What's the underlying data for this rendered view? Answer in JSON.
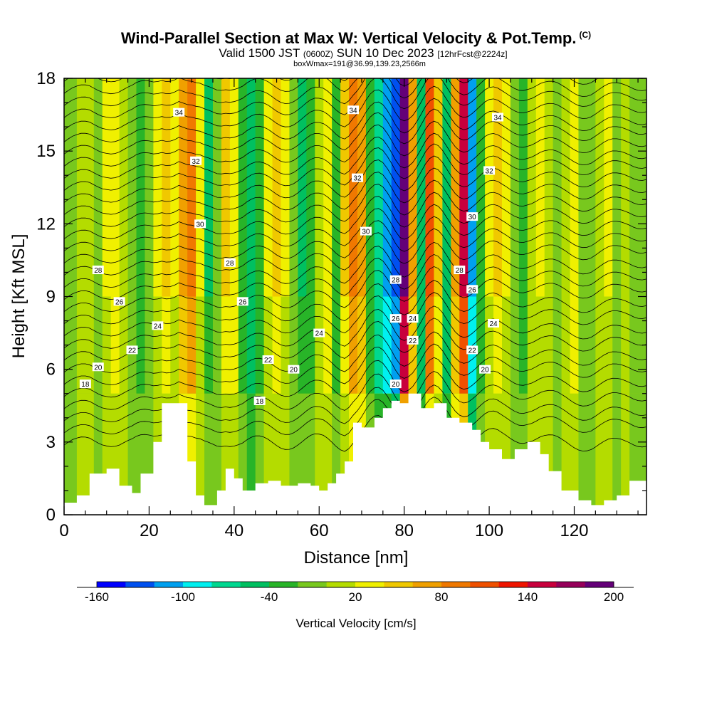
{
  "header": {
    "title": "Wind-Parallel Section at Max W: Vertical Velocity & Pot.Temp.",
    "copyright": "(C)",
    "valid_prefix": "Valid 1500 JST",
    "valid_utc": "(0600Z)",
    "valid_date": "SUN 10 Dec 2023",
    "forecast": "[12hrFcst@2224z]",
    "box_info": "boxWmax=191@36.99,139.23,2566m"
  },
  "chart_data": {
    "type": "heatmap",
    "xlabel": "Distance [nm]",
    "ylabel": "Height [Kft MSL]",
    "xlim": [
      0,
      137
    ],
    "ylim": [
      0,
      18
    ],
    "x_ticks": [
      0,
      20,
      40,
      60,
      80,
      100,
      120
    ],
    "y_ticks": [
      0,
      3,
      6,
      9,
      12,
      15,
      18
    ],
    "colorbar": {
      "label": "Vertical Velocity [cm/s]",
      "min": -160,
      "max": 200,
      "step": 20,
      "tick_labels": [
        "-160",
        "-100",
        "-40",
        "20",
        "80",
        "140",
        "200"
      ],
      "tick_values": [
        -160,
        -100,
        -40,
        20,
        80,
        140,
        200
      ],
      "colors": [
        "#0000ff",
        "#0050f0",
        "#00a0f0",
        "#00f0f0",
        "#00d890",
        "#00c060",
        "#28b428",
        "#78c81e",
        "#b4dc00",
        "#f0f000",
        "#f0c800",
        "#f0a000",
        "#f07800",
        "#f05000",
        "#f01400",
        "#c8003c",
        "#96005a",
        "#640078"
      ]
    },
    "terrain": [
      [
        0,
        0.5
      ],
      [
        3,
        0.8
      ],
      [
        6,
        1.7
      ],
      [
        10,
        1.9
      ],
      [
        13,
        1.2
      ],
      [
        16,
        0.9
      ],
      [
        18,
        1.7
      ],
      [
        21,
        3.0
      ],
      [
        23,
        4.6
      ],
      [
        27,
        4.6
      ],
      [
        29,
        2.2
      ],
      [
        31,
        0.8
      ],
      [
        33,
        0.4
      ],
      [
        36,
        1.0
      ],
      [
        38,
        1.9
      ],
      [
        40,
        1.5
      ],
      [
        42,
        1.0
      ],
      [
        45,
        1.3
      ],
      [
        48,
        1.4
      ],
      [
        51,
        1.2
      ],
      [
        55,
        1.3
      ],
      [
        58,
        1.2
      ],
      [
        60,
        1.0
      ],
      [
        62,
        1.3
      ],
      [
        64,
        1.7
      ],
      [
        66,
        2.2
      ],
      [
        68,
        3.8
      ],
      [
        70,
        3.6
      ],
      [
        73,
        4.0
      ],
      [
        75,
        4.4
      ],
      [
        77,
        4.7
      ],
      [
        79,
        4.6
      ],
      [
        81,
        5.0
      ],
      [
        84,
        4.4
      ],
      [
        87,
        4.6
      ],
      [
        90,
        4.0
      ],
      [
        93,
        3.8
      ],
      [
        96,
        3.5
      ],
      [
        98,
        3.0
      ],
      [
        100,
        2.7
      ],
      [
        103,
        2.3
      ],
      [
        106,
        2.7
      ],
      [
        109,
        3.0
      ],
      [
        112,
        2.5
      ],
      [
        114,
        1.8
      ],
      [
        117,
        1.0
      ],
      [
        121,
        0.6
      ],
      [
        124,
        0.4
      ],
      [
        127,
        0.6
      ],
      [
        130,
        0.8
      ],
      [
        133,
        1.4
      ],
      [
        137,
        1.7
      ]
    ],
    "theta_labels": [
      {
        "x": 27,
        "y": 16.6,
        "text": "34"
      },
      {
        "x": 68,
        "y": 16.7,
        "text": "34"
      },
      {
        "x": 102,
        "y": 16.4,
        "text": "34"
      },
      {
        "x": 31,
        "y": 14.6,
        "text": "32"
      },
      {
        "x": 69,
        "y": 13.9,
        "text": "32"
      },
      {
        "x": 100,
        "y": 14.2,
        "text": "32"
      },
      {
        "x": 32,
        "y": 12.0,
        "text": "30"
      },
      {
        "x": 71,
        "y": 11.7,
        "text": "30"
      },
      {
        "x": 96,
        "y": 12.3,
        "text": "30"
      },
      {
        "x": 8,
        "y": 10.1,
        "text": "28"
      },
      {
        "x": 39,
        "y": 10.4,
        "text": "28"
      },
      {
        "x": 78,
        "y": 9.7,
        "text": "28"
      },
      {
        "x": 93,
        "y": 10.1,
        "text": "28"
      },
      {
        "x": 13,
        "y": 8.8,
        "text": "26"
      },
      {
        "x": 42,
        "y": 8.8,
        "text": "26"
      },
      {
        "x": 78,
        "y": 8.1,
        "text": "26"
      },
      {
        "x": 96,
        "y": 9.3,
        "text": "26"
      },
      {
        "x": 22,
        "y": 7.8,
        "text": "24"
      },
      {
        "x": 60,
        "y": 7.5,
        "text": "24"
      },
      {
        "x": 82,
        "y": 8.1,
        "text": "24"
      },
      {
        "x": 101,
        "y": 7.9,
        "text": "24"
      },
      {
        "x": 16,
        "y": 6.8,
        "text": "22"
      },
      {
        "x": 48,
        "y": 6.4,
        "text": "22"
      },
      {
        "x": 82,
        "y": 7.2,
        "text": "22"
      },
      {
        "x": 96,
        "y": 6.8,
        "text": "22"
      },
      {
        "x": 8,
        "y": 6.1,
        "text": "20"
      },
      {
        "x": 54,
        "y": 6.0,
        "text": "20"
      },
      {
        "x": 78,
        "y": 5.4,
        "text": "20"
      },
      {
        "x": 99,
        "y": 6.0,
        "text": "20"
      },
      {
        "x": 5,
        "y": 5.4,
        "text": "18"
      },
      {
        "x": 46,
        "y": 4.7,
        "text": "18"
      }
    ],
    "theta_lines": [
      {
        "base": 2.8,
        "rise": 0.0
      },
      {
        "base": 3.3,
        "rise": 0.3
      },
      {
        "base": 3.8,
        "rise": 0.3
      },
      {
        "base": 4.3,
        "rise": 0.4
      },
      {
        "base": 4.8,
        "rise": 0.5
      },
      {
        "base": 5.3,
        "rise": 0.6
      },
      {
        "base": 5.8,
        "rise": 0.6
      },
      {
        "base": 6.3,
        "rise": 0.7
      },
      {
        "base": 6.8,
        "rise": 0.7
      },
      {
        "base": 7.3,
        "rise": 0.8
      },
      {
        "base": 7.8,
        "rise": 0.8
      },
      {
        "base": 8.3,
        "rise": 0.9
      },
      {
        "base": 8.8,
        "rise": 0.9
      },
      {
        "base": 9.3,
        "rise": 0.9
      },
      {
        "base": 9.8,
        "rise": 1.0
      },
      {
        "base": 10.3,
        "rise": 1.0
      },
      {
        "base": 10.8,
        "rise": 1.0
      },
      {
        "base": 11.3,
        "rise": 1.0
      },
      {
        "base": 11.8,
        "rise": 1.0
      },
      {
        "base": 12.3,
        "rise": 1.0
      },
      {
        "base": 12.8,
        "rise": 1.0
      },
      {
        "base": 13.3,
        "rise": 1.0
      },
      {
        "base": 13.8,
        "rise": 0.9
      },
      {
        "base": 14.3,
        "rise": 0.9
      },
      {
        "base": 14.8,
        "rise": 0.9
      },
      {
        "base": 15.3,
        "rise": 0.8
      },
      {
        "base": 15.8,
        "rise": 0.8
      },
      {
        "base": 16.3,
        "rise": 0.8
      },
      {
        "base": 16.8,
        "rise": 0.7
      },
      {
        "base": 17.3,
        "rise": 0.7
      },
      {
        "base": 17.8,
        "rise": 0.6
      }
    ],
    "w_columns": [
      {
        "x": 0,
        "w": -10
      },
      {
        "x": 2,
        "w": -20
      },
      {
        "x": 4,
        "w": 0
      },
      {
        "x": 6,
        "w": 10
      },
      {
        "x": 8,
        "w": -10
      },
      {
        "x": 10,
        "w": 20
      },
      {
        "x": 12,
        "w": 30
      },
      {
        "x": 14,
        "w": 10
      },
      {
        "x": 16,
        "w": -20
      },
      {
        "x": 18,
        "w": -40
      },
      {
        "x": 20,
        "w": -20
      },
      {
        "x": 22,
        "w": 20
      },
      {
        "x": 24,
        "w": 40
      },
      {
        "x": 26,
        "w": 20
      },
      {
        "x": 28,
        "w": 60
      },
      {
        "x": 30,
        "w": 80
      },
      {
        "x": 32,
        "w": 20
      },
      {
        "x": 34,
        "w": -50
      },
      {
        "x": 36,
        "w": -20
      },
      {
        "x": 38,
        "w": 40
      },
      {
        "x": 40,
        "w": 30
      },
      {
        "x": 42,
        "w": -30
      },
      {
        "x": 44,
        "w": -60
      },
      {
        "x": 46,
        "w": -40
      },
      {
        "x": 48,
        "w": 20
      },
      {
        "x": 50,
        "w": 40
      },
      {
        "x": 52,
        "w": 20
      },
      {
        "x": 54,
        "w": -20
      },
      {
        "x": 56,
        "w": -50
      },
      {
        "x": 58,
        "w": -30
      },
      {
        "x": 60,
        "w": 10
      },
      {
        "x": 62,
        "w": 30
      },
      {
        "x": 64,
        "w": -40
      },
      {
        "x": 66,
        "w": 40
      },
      {
        "x": 68,
        "w": 80
      },
      {
        "x": 70,
        "w": 60
      },
      {
        "x": 72,
        "w": -40
      },
      {
        "x": 74,
        "w": -80
      },
      {
        "x": 76,
        "w": -110
      },
      {
        "x": 78,
        "w": -140
      },
      {
        "x": 80,
        "w": 180
      },
      {
        "x": 82,
        "w": 60
      },
      {
        "x": 84,
        "w": -60
      },
      {
        "x": 86,
        "w": 100
      },
      {
        "x": 88,
        "w": 40
      },
      {
        "x": 90,
        "w": -60
      },
      {
        "x": 92,
        "w": 60
      },
      {
        "x": 94,
        "w": 140
      },
      {
        "x": 96,
        "w": -120
      },
      {
        "x": 98,
        "w": -40
      },
      {
        "x": 100,
        "w": 20
      },
      {
        "x": 102,
        "w": 40
      },
      {
        "x": 104,
        "w": 20
      },
      {
        "x": 106,
        "w": -20
      },
      {
        "x": 108,
        "w": -40
      },
      {
        "x": 110,
        "w": 0
      },
      {
        "x": 112,
        "w": 20
      },
      {
        "x": 114,
        "w": 0
      },
      {
        "x": 116,
        "w": -20
      },
      {
        "x": 118,
        "w": 10
      },
      {
        "x": 120,
        "w": 30
      },
      {
        "x": 122,
        "w": -10
      },
      {
        "x": 124,
        "w": -20
      },
      {
        "x": 126,
        "w": 10
      },
      {
        "x": 128,
        "w": 20
      },
      {
        "x": 130,
        "w": -10
      },
      {
        "x": 132,
        "w": 0
      },
      {
        "x": 134,
        "w": -20
      },
      {
        "x": 136,
        "w": -10
      }
    ]
  }
}
